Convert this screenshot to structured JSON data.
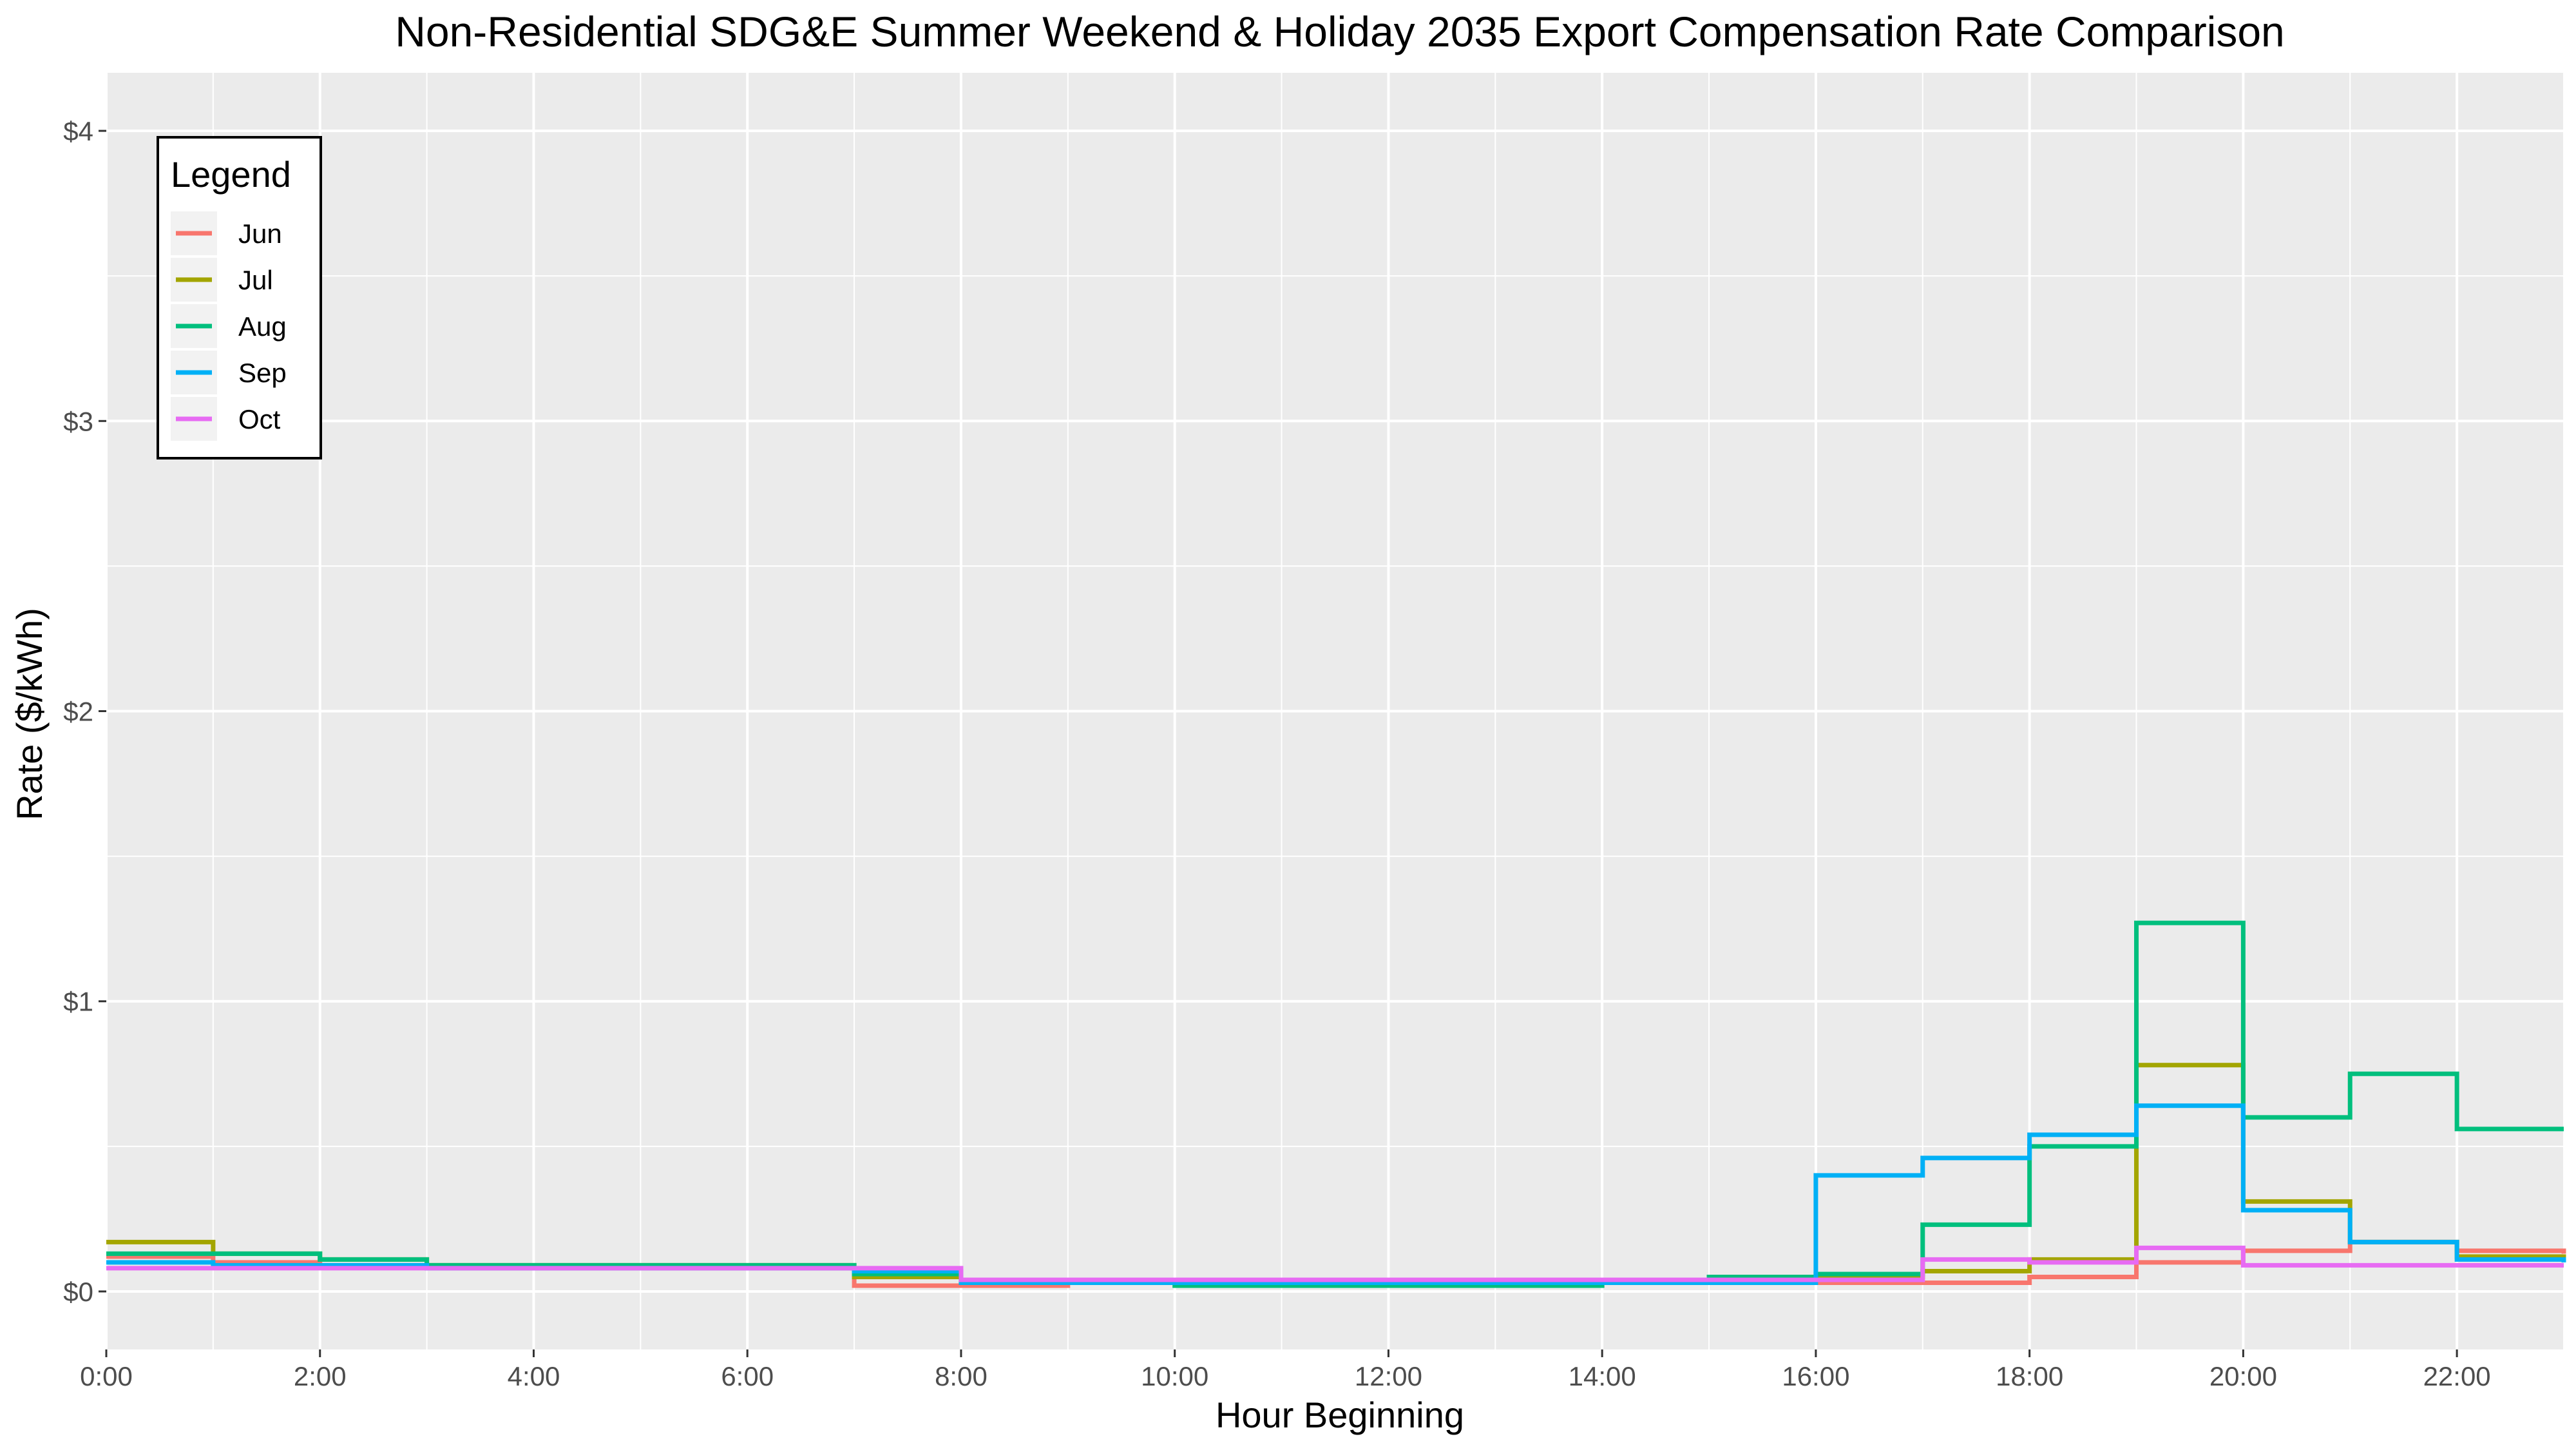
{
  "chart_data": {
    "type": "line",
    "step": true,
    "title": "Non-Residential SDG&E Summer Weekend & Holiday 2035 Export Compensation Rate Comparison",
    "xlabel": "Hour Beginning",
    "ylabel": "Rate ($/kWh)",
    "x": [
      0,
      1,
      2,
      3,
      4,
      5,
      6,
      7,
      8,
      9,
      10,
      11,
      12,
      13,
      14,
      15,
      16,
      17,
      18,
      19,
      20,
      21,
      22,
      23
    ],
    "xlim": [
      0,
      23
    ],
    "ylim": [
      -0.2,
      4.2
    ],
    "x_ticks": [
      {
        "value": 0,
        "label": "0:00"
      },
      {
        "value": 2,
        "label": "2:00"
      },
      {
        "value": 4,
        "label": "4:00"
      },
      {
        "value": 6,
        "label": "6:00"
      },
      {
        "value": 8,
        "label": "8:00"
      },
      {
        "value": 10,
        "label": "10:00"
      },
      {
        "value": 12,
        "label": "12:00"
      },
      {
        "value": 14,
        "label": "14:00"
      },
      {
        "value": 16,
        "label": "16:00"
      },
      {
        "value": 18,
        "label": "18:00"
      },
      {
        "value": 20,
        "label": "20:00"
      },
      {
        "value": 22,
        "label": "22:00"
      }
    ],
    "y_ticks": [
      {
        "value": 0,
        "label": "$0"
      },
      {
        "value": 1,
        "label": "$1"
      },
      {
        "value": 2,
        "label": "$2"
      },
      {
        "value": 3,
        "label": "$3"
      },
      {
        "value": 4,
        "label": "$4"
      }
    ],
    "grid": true,
    "legend": {
      "title": "Legend",
      "position": "top-left"
    },
    "series": [
      {
        "name": "Jun",
        "color": "#F8766D",
        "values": [
          0.12,
          0.1,
          0.09,
          0.08,
          0.08,
          0.08,
          0.08,
          0.02,
          0.02,
          0.03,
          0.03,
          0.03,
          0.03,
          0.03,
          0.03,
          0.04,
          0.03,
          0.03,
          0.05,
          0.1,
          0.14,
          0.17,
          0.14,
          0.13
        ]
      },
      {
        "name": "Jul",
        "color": "#A3A500",
        "values": [
          0.17,
          0.13,
          0.11,
          0.09,
          0.09,
          0.09,
          0.09,
          0.05,
          0.03,
          0.03,
          0.03,
          0.03,
          0.03,
          0.03,
          0.03,
          0.04,
          0.05,
          0.07,
          0.11,
          0.78,
          0.31,
          0.17,
          0.12,
          0.11
        ]
      },
      {
        "name": "Aug",
        "color": "#00BF7D",
        "values": [
          0.13,
          0.13,
          0.11,
          0.09,
          0.09,
          0.09,
          0.09,
          0.06,
          0.03,
          0.03,
          0.02,
          0.02,
          0.02,
          0.02,
          0.03,
          0.05,
          0.06,
          0.23,
          0.5,
          1.27,
          0.6,
          0.75,
          0.56,
          0.56
        ]
      },
      {
        "name": "Sep",
        "color": "#00B0F6",
        "values": [
          0.1,
          0.09,
          0.09,
          0.08,
          0.08,
          0.08,
          0.08,
          0.07,
          0.03,
          0.03,
          0.03,
          0.03,
          0.03,
          0.03,
          0.03,
          0.03,
          0.4,
          0.46,
          0.54,
          0.64,
          0.28,
          0.17,
          0.11,
          0.1
        ]
      },
      {
        "name": "Oct",
        "color": "#E76BF3",
        "values": [
          0.08,
          0.08,
          0.08,
          0.08,
          0.08,
          0.08,
          0.08,
          0.08,
          0.04,
          0.04,
          0.04,
          0.04,
          0.04,
          0.04,
          0.04,
          0.04,
          0.04,
          0.11,
          0.1,
          0.15,
          0.09,
          0.09,
          0.09,
          0.09
        ]
      }
    ]
  }
}
